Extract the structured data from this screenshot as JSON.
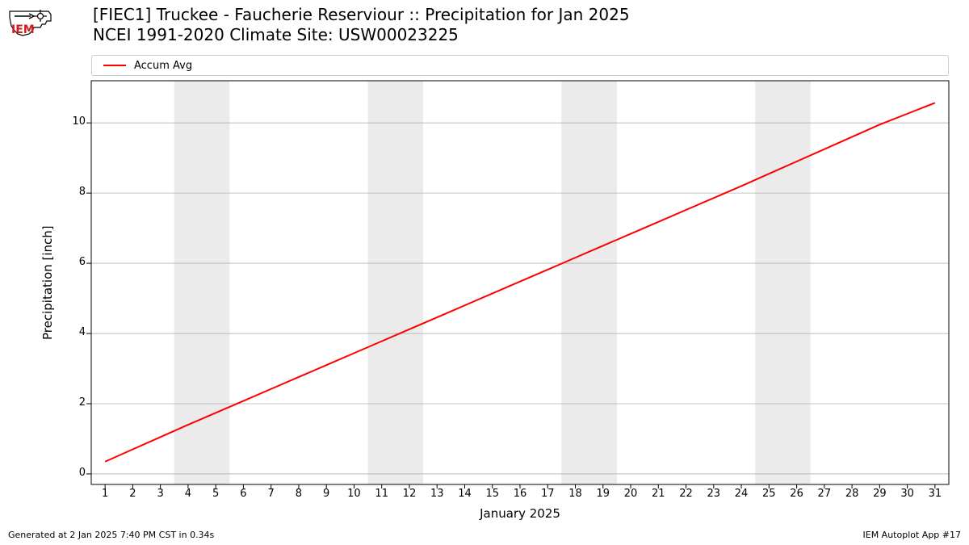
{
  "title": {
    "line1": "[FIEC1] Truckee - Faucherie Reserviour :: Precipitation for Jan 2025",
    "line2": "NCEI 1991-2020 Climate Site: USW00023225"
  },
  "legend": {
    "series1_label": "Accum Avg",
    "series1_color": "#ff0000"
  },
  "chart": {
    "type": "line",
    "x_values": [
      1,
      2,
      3,
      4,
      5,
      6,
      7,
      8,
      9,
      10,
      11,
      12,
      13,
      14,
      15,
      16,
      17,
      18,
      19,
      20,
      21,
      22,
      23,
      24,
      25,
      26,
      27,
      28,
      29,
      30,
      31
    ],
    "y_values": [
      0.35,
      0.7,
      1.05,
      1.4,
      1.74,
      2.08,
      2.42,
      2.76,
      3.1,
      3.44,
      3.78,
      4.12,
      4.46,
      4.8,
      5.14,
      5.48,
      5.82,
      6.16,
      6.5,
      6.84,
      7.18,
      7.52,
      7.86,
      8.2,
      8.55,
      8.9,
      9.25,
      9.6,
      9.95,
      10.26,
      10.57
    ],
    "line_color": "#ff0000",
    "line_width": 2,
    "xlim": [
      0.5,
      31.5
    ],
    "ylim": [
      -0.3,
      11.2
    ],
    "yticks": [
      0,
      2,
      4,
      6,
      8,
      10
    ],
    "xticks": [
      1,
      2,
      3,
      4,
      5,
      6,
      7,
      8,
      9,
      10,
      11,
      12,
      13,
      14,
      15,
      16,
      17,
      18,
      19,
      20,
      21,
      22,
      23,
      24,
      25,
      26,
      27,
      28,
      29,
      30,
      31
    ],
    "xlabel": "January 2025",
    "ylabel": "Precipitation [inch]",
    "grid_color": "#b0b0b0",
    "background_color": "#ffffff",
    "weekend_band_color": "#ebebeb",
    "weekend_bands": [
      [
        3.5,
        5.5
      ],
      [
        10.5,
        12.5
      ],
      [
        17.5,
        19.5
      ],
      [
        24.5,
        26.5
      ]
    ],
    "spine_color": "#000000",
    "tick_fontsize": 13,
    "label_fontsize": 15,
    "title_fontsize": 20
  },
  "footer": {
    "left": "Generated at 2 Jan 2025 7:40 PM CST in 0.34s",
    "right": "IEM Autoplot App #17"
  },
  "logo": {
    "text": "IEM",
    "text_color": "#d01c1c",
    "outline_color": "#000000"
  }
}
